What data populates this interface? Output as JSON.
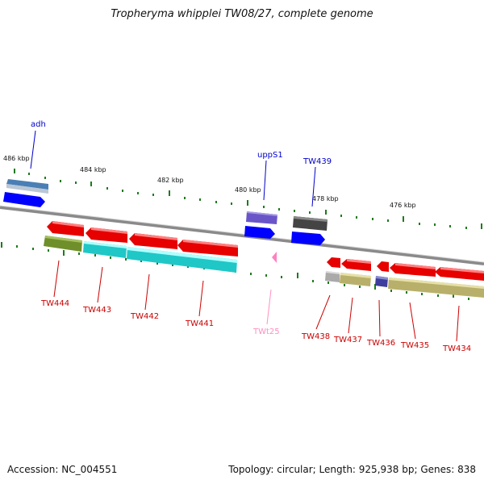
{
  "header": {
    "title": "Tropheryma whipplei TW08/27, complete genome"
  },
  "footer": {
    "accession": "Accession: NC_004551",
    "topology": "Topology: circular; Length: 925,938 bp; Genes: 838"
  },
  "colors": {
    "backbone": "#8a8a8a",
    "tick": "#1f7a1f",
    "label_red": "#cc0000",
    "label_blue": "#0000cc",
    "label_pink": "#ff8fc0",
    "gene_red": "#e60000",
    "cds_blue": "#0000ff",
    "olive": "#6f8f2a",
    "cyan": "#20c7c7",
    "khaki": "#b8b06a",
    "gray": "#aaaaaa",
    "steelblue": "#4a7fb5",
    "purple": "#6a55c8",
    "dark": "#444444"
  },
  "scale_labels": [
    "486 kbp",
    "484 kbp",
    "482 kbp",
    "480 kbp",
    "478 kbp",
    "476 kbp"
  ],
  "genes": [
    {
      "name": "adh",
      "color": "label_blue"
    },
    {
      "name": "uppS1",
      "color": "label_blue"
    },
    {
      "name": "TW439",
      "color": "label_blue"
    },
    {
      "name": "TW444",
      "color": "label_red"
    },
    {
      "name": "TW443",
      "color": "label_red"
    },
    {
      "name": "TW442",
      "color": "label_red"
    },
    {
      "name": "TW441",
      "color": "label_red"
    },
    {
      "name": "TWt25",
      "color": "label_pink"
    },
    {
      "name": "TW438",
      "color": "label_red"
    },
    {
      "name": "TW437",
      "color": "label_red"
    },
    {
      "name": "TW436",
      "color": "label_red"
    },
    {
      "name": "TW435",
      "color": "label_red"
    },
    {
      "name": "TW434",
      "color": "label_red"
    }
  ]
}
